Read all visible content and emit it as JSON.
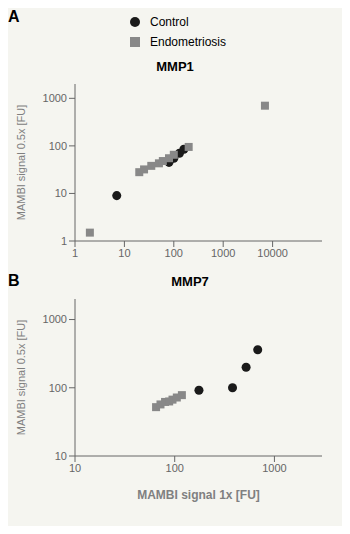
{
  "chart_data": [
    {
      "type": "scatter",
      "title": "MMP1",
      "annotations": [
        "A"
      ],
      "ylabel": "MAMBI signal 0.5x [FU]",
      "log": true,
      "legend": "top",
      "xlim": [
        1,
        100000
      ],
      "ylim": [
        1,
        2000
      ],
      "xticks": [
        1,
        10,
        100,
        1000,
        10000
      ],
      "yticks": [
        1,
        10,
        100,
        1000
      ],
      "series": [
        {
          "name": "Control",
          "color": "#1a1a1a",
          "marker": "circle",
          "x": [
            7,
            80,
            100,
            130,
            160
          ],
          "values": [
            9,
            45,
            55,
            70,
            85
          ]
        },
        {
          "name": "Endometriosis",
          "color": "#888888",
          "marker": "square",
          "x": [
            2,
            20,
            25,
            35,
            50,
            60,
            80,
            100,
            200,
            7000
          ],
          "values": [
            1.5,
            28,
            32,
            38,
            43,
            48,
            55,
            65,
            95,
            700
          ]
        }
      ]
    },
    {
      "type": "scatter",
      "title": "MMP7",
      "annotations": [
        "B"
      ],
      "ylabel": "MAMBI signal 0.5x [FU]",
      "xlabel": "MAMBI signal 1x [FU]",
      "log": true,
      "xlim": [
        10,
        3000
      ],
      "ylim": [
        10,
        2000
      ],
      "xticks": [
        10,
        100,
        1000
      ],
      "yticks": [
        10,
        100,
        1000
      ],
      "series": [
        {
          "name": "Control",
          "color": "#1a1a1a",
          "marker": "circle",
          "x": [
            175,
            380,
            520,
            680
          ],
          "values": [
            92,
            100,
            200,
            360
          ]
        },
        {
          "name": "Endometriosis",
          "color": "#888888",
          "marker": "square",
          "x": [
            65,
            72,
            80,
            88,
            95,
            105,
            118
          ],
          "values": [
            52,
            57,
            62,
            63,
            67,
            72,
            78
          ]
        }
      ]
    }
  ]
}
